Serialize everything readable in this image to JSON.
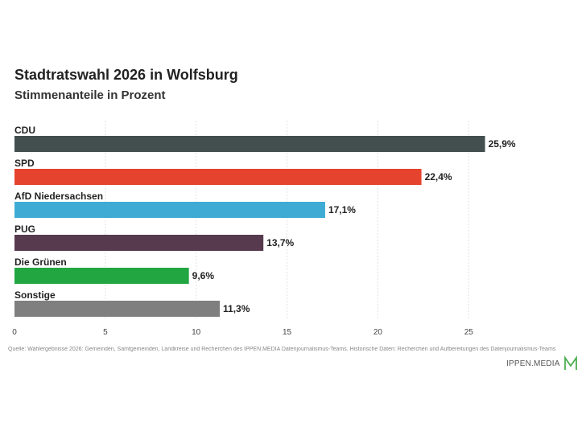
{
  "header": {
    "title": "Stadtratswahl 2026 in Wolfsburg",
    "subtitle": "Stimmenanteile in Prozent"
  },
  "footer": {
    "source": "Quelle: Wahlergebnisse 2026: Gemeinden, Samtgemeinden, Landkreise und Recherchen des IPPEN.MEDIA Datenjournalismus-Teams. Historische Daten: Recherchen und Aufbereitungen des Datenjournalismus-Teams",
    "brand": "IPPEN.MEDIA",
    "brand_color": "#4caf50"
  },
  "chart_data": {
    "type": "bar",
    "orientation": "horizontal",
    "title": "Stadtratswahl 2026 in Wolfsburg",
    "subtitle": "Stimmenanteile in Prozent",
    "categories": [
      "CDU",
      "SPD",
      "AfD Niedersachsen",
      "PUG",
      "Die Grünen",
      "Sonstige"
    ],
    "values": [
      25.9,
      22.4,
      17.1,
      13.7,
      9.6,
      11.3
    ],
    "value_labels": [
      "25,9%",
      "22,4%",
      "17,1%",
      "13,7%",
      "9,6%",
      "11,3%"
    ],
    "colors": [
      "#434e4e",
      "#e5432d",
      "#3eabd4",
      "#573a4e",
      "#21a642",
      "#7f7f7f"
    ],
    "xlim": [
      0,
      28
    ],
    "xticks": [
      "0",
      "5",
      "10",
      "15",
      "20",
      "25"
    ],
    "xtick_values": [
      0,
      5,
      10,
      15,
      20,
      25
    ],
    "grid": "vertical dotted",
    "legend": "none"
  }
}
